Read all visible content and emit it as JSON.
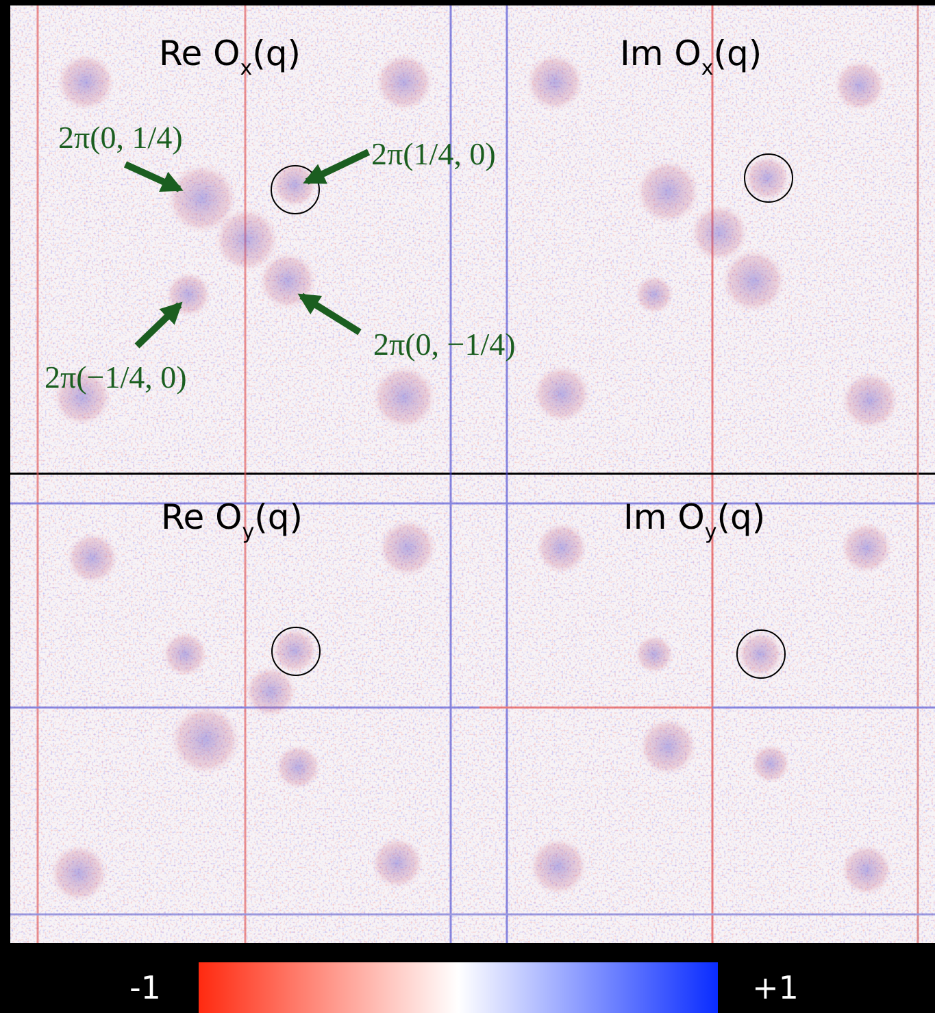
{
  "panels": [
    {
      "prefix": "Re O",
      "sub": "x",
      "suffix": "(q)"
    },
    {
      "prefix": "Im O",
      "sub": "x",
      "suffix": "(q)"
    },
    {
      "prefix": "Re O",
      "sub": "y",
      "suffix": "(q)"
    },
    {
      "prefix": "Im O",
      "sub": "y",
      "suffix": "(q)"
    }
  ],
  "annotations": [
    "2π(0, 1/4)",
    "2π(1/4, 0)",
    "2π(0, −1/4)",
    "2π(−1/4, 0)"
  ],
  "colorbar": {
    "min_label": "-1",
    "max_label": "+1"
  }
}
